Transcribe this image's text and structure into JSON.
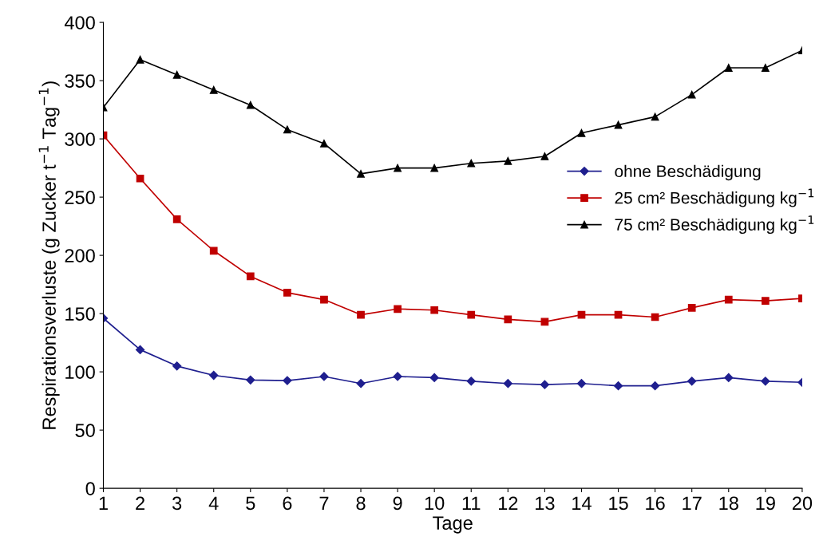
{
  "chart_data": {
    "type": "line",
    "xlabel": "Tage",
    "ylabel": "Respirationsverluste (g Zucker t$^{−1}$ Tag$^{−1}$)",
    "x": [
      1,
      2,
      3,
      4,
      5,
      6,
      7,
      8,
      9,
      10,
      11,
      12,
      13,
      14,
      15,
      16,
      17,
      18,
      19,
      20
    ],
    "xlim": [
      1,
      20
    ],
    "xticks": [
      1,
      2,
      3,
      4,
      5,
      6,
      7,
      8,
      9,
      10,
      11,
      12,
      13,
      14,
      15,
      16,
      17,
      18,
      19,
      20
    ],
    "ylim": [
      0,
      400
    ],
    "yticks": [
      0,
      50,
      100,
      150,
      200,
      250,
      300,
      350,
      400
    ],
    "grid": false,
    "legend": "right",
    "line_style": "solid",
    "series": [
      {
        "name": "ohne Beschädigung",
        "color": "#1f1f8f",
        "marker": "diamond",
        "values": [
          146,
          119,
          105,
          97,
          93,
          92.5,
          96,
          90,
          96,
          95,
          92,
          90,
          89,
          90,
          88,
          88,
          92,
          95,
          92,
          91
        ]
      },
      {
        "name": "25 cm² Beschädigung kg$^{−1}$",
        "color": "#c00000",
        "marker": "square",
        "values": [
          303,
          266,
          231,
          204,
          182,
          168,
          162,
          149,
          154,
          153,
          149,
          145,
          143,
          149,
          149,
          147,
          155,
          162,
          161,
          163
        ]
      },
      {
        "name": "75 cm² Beschädigung kg$^{−1}$",
        "color": "#000000",
        "marker": "triangle",
        "values": [
          327,
          368,
          355,
          342,
          329,
          308,
          296,
          270,
          275,
          275,
          279,
          281,
          285,
          305,
          312,
          319,
          338,
          361,
          361,
          376
        ]
      }
    ]
  }
}
